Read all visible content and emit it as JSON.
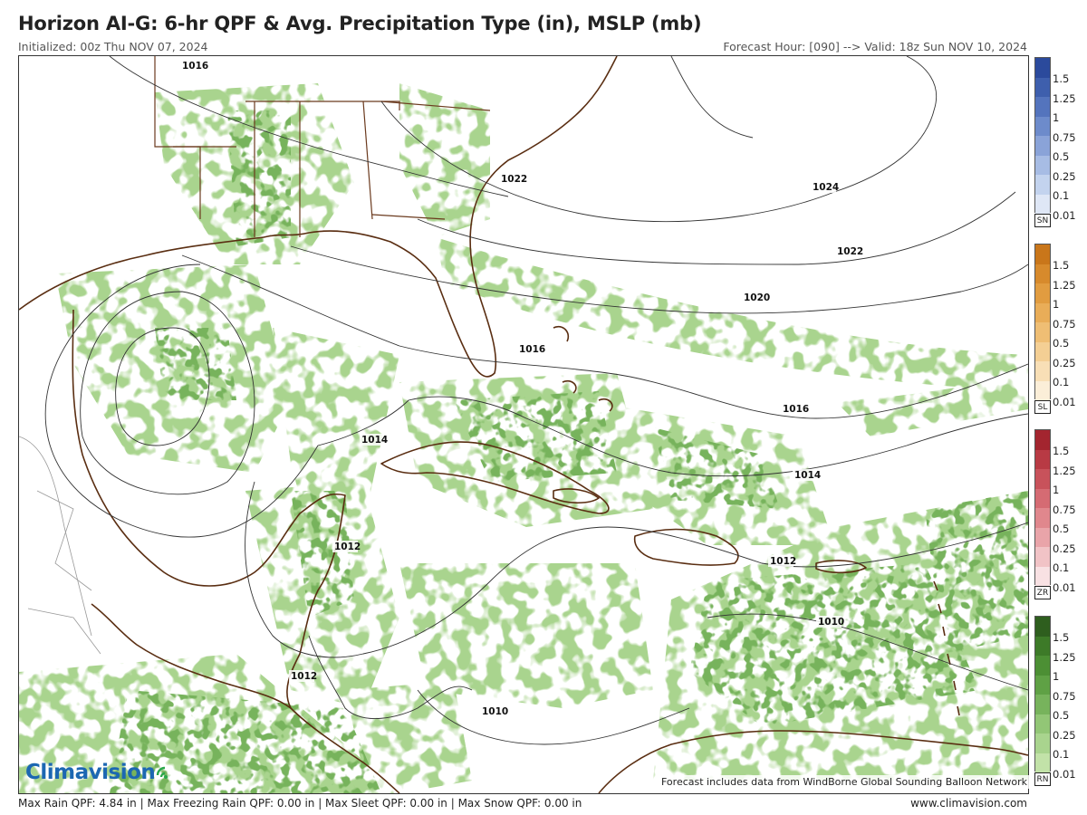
{
  "header": {
    "title": "Horizon AI-G: 6-hr QPF & Avg. Precipitation Type (in), MSLP (mb)",
    "initialized": "Initialized: 00z Thu NOV 07, 2024",
    "forecast_valid": "Forecast Hour: [090] --> Valid: 18z Sun NOV 10, 2024"
  },
  "isobars": [
    {
      "label": "1016",
      "pos": [
        180,
        14
      ]
    },
    {
      "label": "1022",
      "pos": [
        532,
        139
      ]
    },
    {
      "label": "1024",
      "pos": [
        876,
        148
      ]
    },
    {
      "label": "1022",
      "pos": [
        903,
        219
      ]
    },
    {
      "label": "1020",
      "pos": [
        800,
        270
      ]
    },
    {
      "label": "1016",
      "pos": [
        552,
        327
      ]
    },
    {
      "label": "1016",
      "pos": [
        843,
        393
      ]
    },
    {
      "label": "1014",
      "pos": [
        378,
        427
      ]
    },
    {
      "label": "1014",
      "pos": [
        856,
        466
      ]
    },
    {
      "label": "1012",
      "pos": [
        348,
        545
      ]
    },
    {
      "label": "1012",
      "pos": [
        829,
        561
      ]
    },
    {
      "label": "1010",
      "pos": [
        882,
        628
      ]
    },
    {
      "label": "1012",
      "pos": [
        300,
        688
      ]
    },
    {
      "label": "1010",
      "pos": [
        511,
        727
      ]
    }
  ],
  "legend": {
    "levels": [
      "1.5",
      "1.25",
      "1",
      "0.75",
      "0.5",
      "0.25",
      "0.1",
      "0.01"
    ],
    "groups": [
      {
        "tag": "SN",
        "colors": [
          "#2b4a9c",
          "#3e5fad",
          "#5474bd",
          "#6d8bcb",
          "#8aa3d8",
          "#a7bce4",
          "#c3d3ee",
          "#dfe7f6"
        ]
      },
      {
        "tag": "SL",
        "colors": [
          "#c9761a",
          "#d78a2c",
          "#e19c40",
          "#e9ad58",
          "#efbe74",
          "#f4cf94",
          "#f8dfb6",
          "#fbeed8"
        ]
      },
      {
        "tag": "ZR",
        "colors": [
          "#a3252f",
          "#b83a44",
          "#c8525b",
          "#d56b73",
          "#e0878d",
          "#e9a4a9",
          "#f1c3c6",
          "#f8e1e3"
        ]
      },
      {
        "tag": "RN",
        "colors": [
          "#2e5e1e",
          "#3d7a28",
          "#4c8f34",
          "#5fa145",
          "#77b35c",
          "#92c676",
          "#a9d48e",
          "#c2e2a8"
        ]
      }
    ]
  },
  "footer": {
    "stats": "Max Rain QPF: 4.84 in  |  Max Freezing Rain QPF: 0.00 in  |  Max Sleet QPF: 0.00 in  |  Max Snow QPF: 0.00 in",
    "website": "www.climavision.com",
    "credit": "Forecast includes data from WindBorne Global Sounding Balloon Network",
    "logo": "Climavision"
  }
}
